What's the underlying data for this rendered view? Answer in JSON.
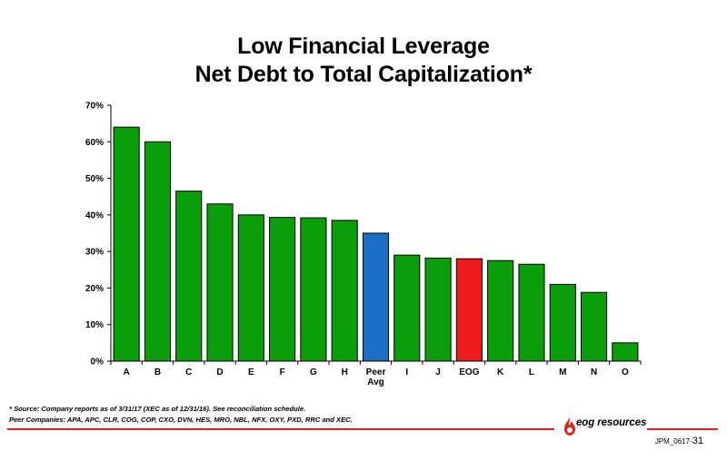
{
  "title_line1": "Low Financial Leverage",
  "title_line2": "Net Debt to Total Capitalization*",
  "chart_data": {
    "type": "bar",
    "categories": [
      "A",
      "B",
      "C",
      "D",
      "E",
      "F",
      "G",
      "H",
      "Peer Avg",
      "I",
      "J",
      "EOG",
      "K",
      "L",
      "M",
      "N",
      "O"
    ],
    "values": [
      64,
      60,
      46.5,
      43,
      40,
      39.3,
      39.2,
      38.5,
      35,
      29,
      28.2,
      28,
      27.5,
      26.5,
      21,
      18.8,
      5
    ],
    "colors": [
      "#0a9e0a",
      "#0a9e0a",
      "#0a9e0a",
      "#0a9e0a",
      "#0a9e0a",
      "#0a9e0a",
      "#0a9e0a",
      "#0a9e0a",
      "#1a6fc4",
      "#0a9e0a",
      "#0a9e0a",
      "#ee1c1c",
      "#0a9e0a",
      "#0a9e0a",
      "#0a9e0a",
      "#0a9e0a",
      "#0a9e0a"
    ],
    "ylim": [
      0,
      70
    ],
    "yticks": [
      0,
      10,
      20,
      30,
      40,
      50,
      60,
      70
    ],
    "ytick_labels": [
      "0%",
      "10%",
      "20%",
      "30%",
      "40%",
      "50%",
      "60%",
      "70%"
    ],
    "grid": false,
    "title": "Low Financial Leverage Net Debt to Total Capitalization*"
  },
  "footnote_source": "* Source: Company reports as of 3/31/17 (XEC as of 12/31/16). See reconciliation schedule.",
  "footnote_peers": "Peer Companies: APA, APC, CLR, COG, COP, CXO, DVN, HES, MRO, NBL, NFX, OXY, PXD, RRC and XEC.",
  "logo_text": "eog resources",
  "slide_code": "JPM_0617-",
  "slide_number": "31",
  "brand_red": "#e2231a"
}
